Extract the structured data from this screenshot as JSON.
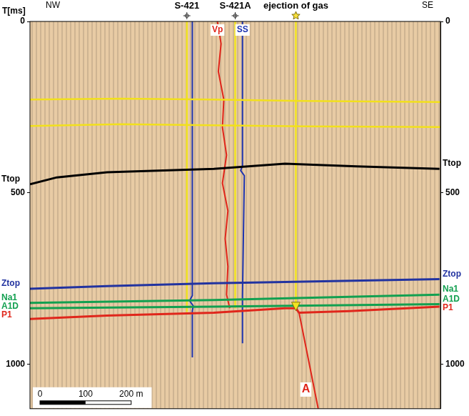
{
  "chart_data": {
    "type": "line",
    "y_label": "T[ms]",
    "direction_labels": [
      "NW",
      "SE"
    ],
    "xlim": [
      0,
      900
    ],
    "ylim": [
      0,
      1130
    ],
    "yticks": [
      0,
      500,
      1000
    ],
    "y2lim": [
      0,
      1130
    ],
    "y2ticks": [
      0,
      500,
      1000
    ],
    "tick_labels": "y",
    "grid": false,
    "series": [
      {
        "color": "#f2e01c",
        "x": [
          0,
          200,
          400,
          600,
          900
        ],
        "values": [
          228,
          225,
          228,
          232,
          235
        ]
      },
      {
        "color": "#f2e01c",
        "x": [
          0,
          200,
          400,
          600,
          900
        ],
        "values": [
          305,
          300,
          303,
          306,
          308
        ]
      },
      {
        "name": "Ttop",
        "color": "#000000",
        "x": [
          0,
          59,
          169,
          403,
          559,
          716,
          898
        ],
        "values": [
          475,
          455,
          440,
          430,
          415,
          423,
          430
        ]
      },
      {
        "name": "Ztop",
        "color": "#2233a0",
        "x": [
          0,
          169,
          403,
          559,
          898
        ],
        "values": [
          780,
          772,
          764,
          760,
          752
        ]
      },
      {
        "name": "Na1",
        "color": "#12a050",
        "x": [
          0,
          403,
          898
        ],
        "values": [
          821,
          813,
          797
        ]
      },
      {
        "name": "A1D",
        "color": "#12a050",
        "x": [
          0,
          403,
          898
        ],
        "values": [
          837,
          832,
          825
        ]
      },
      {
        "name": "P1",
        "color": "#e0261b",
        "x": [
          0,
          169,
          403,
          559,
          583,
          590,
          700,
          898
        ],
        "values": [
          868,
          858,
          850,
          837,
          837,
          850,
          845,
          832
        ]
      }
    ],
    "wells": [
      {
        "name": "S-421",
        "color": "#f2e422",
        "x": [
          344,
          344
        ],
        "values": [
          0,
          848
        ],
        "marker": "cross",
        "line_style": "solid"
      },
      {
        "name": "S-421A",
        "color": "#f2e422",
        "x": [
          450,
          450
        ],
        "values": [
          0,
          837
        ],
        "marker": "cross",
        "line_style": "solid"
      },
      {
        "name": "ejection of gas",
        "color": "#f2e422",
        "x": [
          583,
          583
        ],
        "values": [
          0,
          840
        ],
        "marker": "star",
        "line_style": "arrow"
      }
    ],
    "logs": [
      {
        "color": "#1f35b0",
        "x": [
          356,
          356,
          356,
          350,
          358,
          356,
          356
        ],
        "values": [
          0,
          420,
          800,
          815,
          830,
          845,
          980
        ]
      },
      {
        "name": "SS",
        "color": "#1f35b0",
        "x": [
          466,
          466,
          462,
          470,
          466,
          466
        ],
        "values": [
          0,
          420,
          435,
          450,
          800,
          939
        ]
      },
      {
        "name": "Vp",
        "color": "#e0261b",
        "x": [
          411,
          419,
          413,
          425,
          422,
          431,
          422,
          434,
          428,
          434,
          431,
          438
        ],
        "values": [
          0,
          65,
          146,
          228,
          309,
          390,
          472,
          553,
          634,
          715,
          797,
          837
        ]
      }
    ],
    "fault": {
      "name": "A",
      "color": "#e0261b",
      "x": [
        590,
        632
      ],
      "values": [
        850,
        1130
      ]
    },
    "scale_bar": {
      "ticks": [
        0,
        100,
        {
          "value": 200,
          "label": "200 m"
        }
      ]
    }
  }
}
